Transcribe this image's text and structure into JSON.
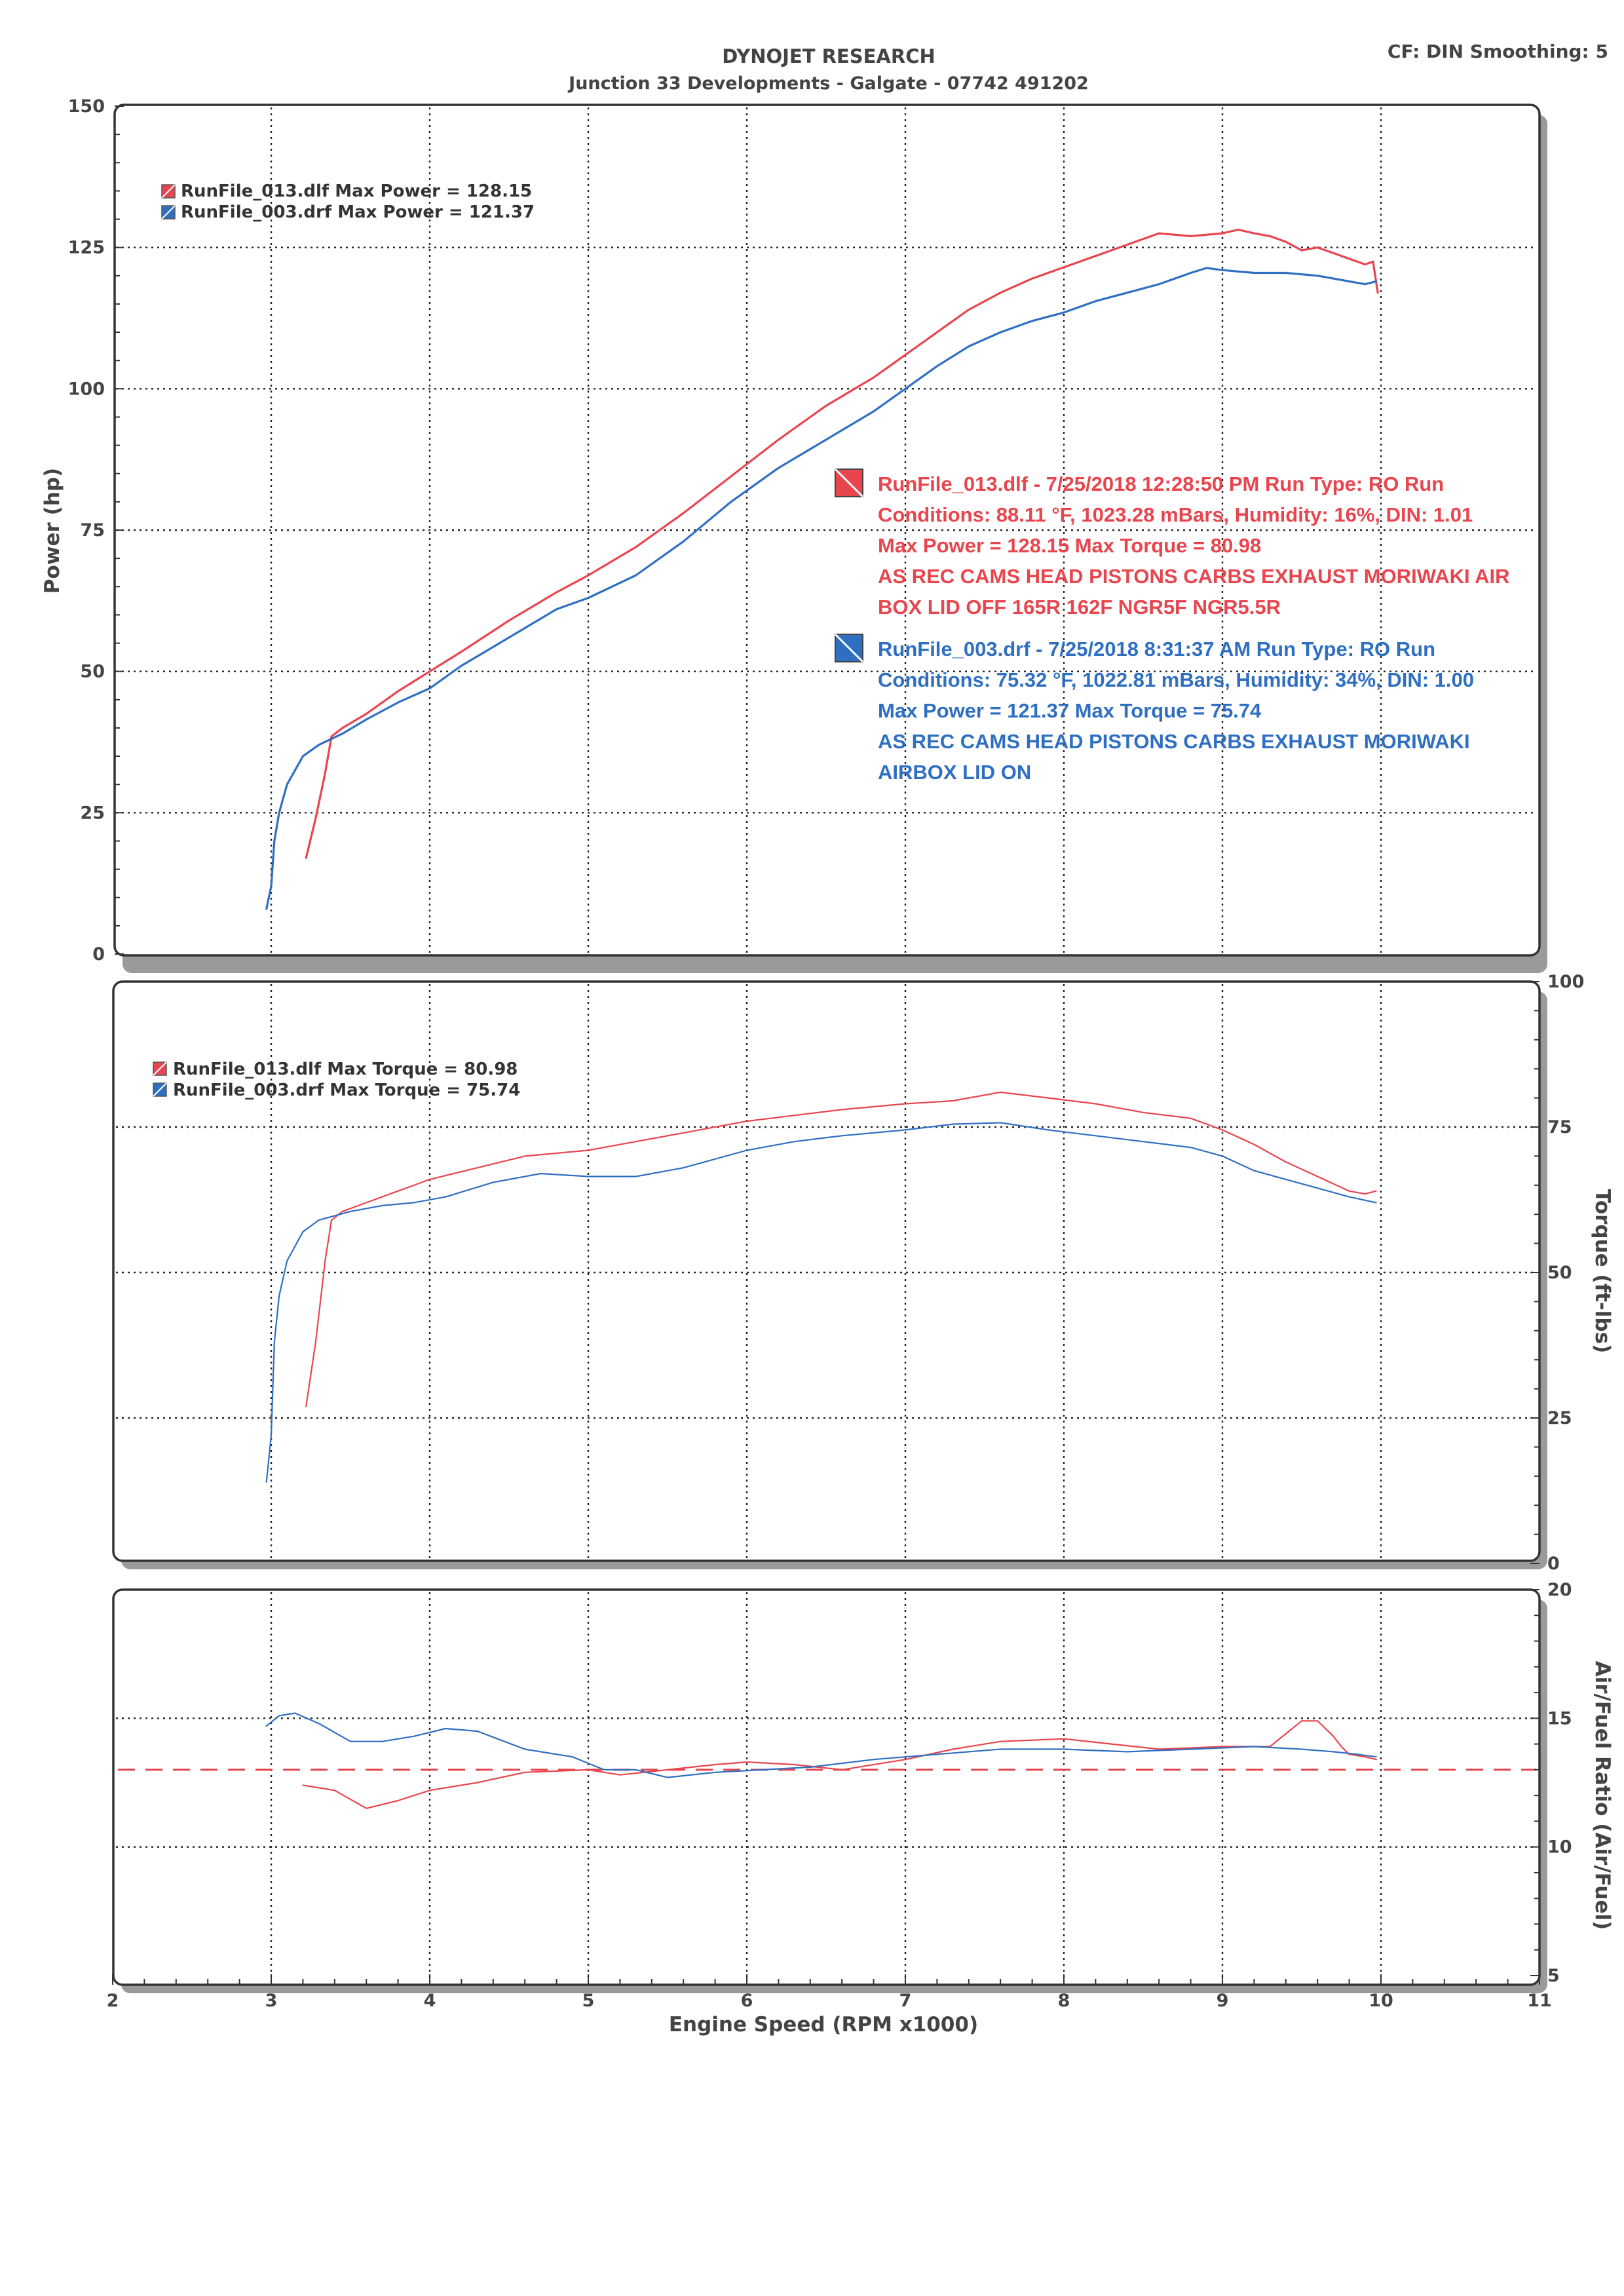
{
  "header": {
    "title": "DYNOJET RESEARCH",
    "subtitle": "Junction 33 Developments - Galgate - 07742 491202",
    "settings": "CF: DIN  Smoothing: 5"
  },
  "colors": {
    "run1": "#e8454e",
    "run2": "#2f6fc2",
    "target": "#e8454e",
    "text": "#444444"
  },
  "runs": [
    {
      "id": "run1",
      "color": "#e8454e",
      "power_legend": "RunFile_013.dlf Max Power = 128.15",
      "torque_legend": "RunFile_013.dlf Max Torque = 80.98",
      "note_lines": [
        "RunFile_013.dlf - 7/25/2018 12:28:50 PM  Run Type: RO  Run",
        "Conditions: 88.11 °F, 1023.28 mBars,  Humidity:  16%, DIN: 1.01",
        "Max Power = 128.15  Max Torque = 80.98",
        "AS REC CAMS HEAD PISTONS CARBS EXHAUST MORIWAKI AIR",
        "BOX LID OFF 165R 162F NGR5F NGR5.5R"
      ]
    },
    {
      "id": "run2",
      "color": "#2f6fc2",
      "power_legend": "RunFile_003.drf Max Power = 121.37",
      "torque_legend": "RunFile_003.drf Max Torque = 75.74",
      "note_lines": [
        "RunFile_003.drf - 7/25/2018 8:31:37 AM  Run Type: RO  Run",
        "Conditions: 75.32 °F, 1022.81 mBars,  Humidity:  34%, DIN: 1.00",
        "Max Power = 121.37  Max Torque = 75.74",
        "AS REC CAMS HEAD PISTONS CARBS EXHAUST MORIWAKI",
        "AIRBOX LID ON"
      ]
    }
  ],
  "chart_data": [
    {
      "type": "line",
      "id": "power",
      "ylabel": "Power (hp)",
      "ylim": [
        0,
        150
      ],
      "yticks": [
        0,
        25,
        50,
        75,
        100,
        125,
        150
      ],
      "xlim": [
        2,
        11
      ],
      "grid": true,
      "legend_position": "top-left",
      "series": [
        {
          "name": "RunFile_013.dlf",
          "x": [
            3.22,
            3.28,
            3.34,
            3.38,
            3.45,
            3.6,
            3.8,
            4.0,
            4.2,
            4.5,
            4.8,
            5.0,
            5.3,
            5.6,
            5.9,
            6.2,
            6.5,
            6.8,
            7.0,
            7.2,
            7.4,
            7.6,
            7.8,
            8.0,
            8.2,
            8.4,
            8.6,
            8.8,
            9.0,
            9.1,
            9.2,
            9.3,
            9.4,
            9.5,
            9.6,
            9.7,
            9.8,
            9.9,
            9.95,
            9.98
          ],
          "y": [
            17,
            24,
            32,
            38.5,
            40,
            42.5,
            46.5,
            50,
            53.5,
            59,
            64,
            67,
            72,
            78,
            84.5,
            91,
            97,
            102,
            106,
            110,
            114,
            117,
            119.5,
            121.5,
            123.5,
            125.5,
            127.5,
            127,
            127.5,
            128.15,
            127.5,
            127,
            126,
            124.5,
            125,
            124,
            123,
            122,
            122.5,
            117
          ]
        },
        {
          "name": "RunFile_003.drf",
          "x": [
            2.97,
            3.0,
            3.02,
            3.05,
            3.1,
            3.2,
            3.3,
            3.45,
            3.6,
            3.8,
            4.0,
            4.2,
            4.5,
            4.8,
            5.0,
            5.3,
            5.6,
            5.9,
            6.2,
            6.5,
            6.8,
            7.0,
            7.2,
            7.4,
            7.6,
            7.8,
            8.0,
            8.2,
            8.4,
            8.6,
            8.8,
            8.9,
            9.0,
            9.2,
            9.4,
            9.6,
            9.7,
            9.8,
            9.9,
            9.97
          ],
          "y": [
            8,
            12,
            20,
            25,
            30,
            35,
            37,
            39,
            41.5,
            44.5,
            47,
            51,
            56,
            61,
            63,
            67,
            73,
            80,
            86,
            91,
            96,
            100,
            104,
            107.5,
            110,
            112,
            113.5,
            115.5,
            117,
            118.5,
            120.5,
            121.37,
            121,
            120.5,
            120.5,
            120,
            119.5,
            119,
            118.5,
            119
          ]
        }
      ]
    },
    {
      "type": "line",
      "id": "torque",
      "ylabel": "Torque (ft-lbs)",
      "ylim": [
        0,
        100
      ],
      "yticks": [
        0,
        25,
        50,
        75,
        100
      ],
      "xlim": [
        2,
        11
      ],
      "grid": true,
      "legend_position": "top-left",
      "series": [
        {
          "name": "RunFile_013.dlf",
          "x": [
            3.22,
            3.28,
            3.34,
            3.38,
            3.45,
            3.6,
            3.8,
            4.0,
            4.3,
            4.6,
            5.0,
            5.3,
            5.6,
            6.0,
            6.3,
            6.6,
            7.0,
            7.3,
            7.6,
            7.9,
            8.2,
            8.5,
            8.8,
            9.0,
            9.2,
            9.4,
            9.6,
            9.8,
            9.9,
            9.97
          ],
          "y": [
            27,
            38,
            52,
            59,
            60.5,
            62,
            64,
            66,
            68,
            70,
            71,
            72.5,
            74,
            76,
            77,
            78,
            79,
            79.5,
            80.98,
            80,
            79,
            77.5,
            76.5,
            74.5,
            72,
            69,
            66.5,
            64,
            63.5,
            64
          ]
        },
        {
          "name": "RunFile_003.drf",
          "x": [
            2.97,
            3.0,
            3.02,
            3.05,
            3.1,
            3.2,
            3.3,
            3.5,
            3.7,
            3.9,
            4.1,
            4.4,
            4.7,
            5.0,
            5.3,
            5.6,
            6.0,
            6.3,
            6.6,
            7.0,
            7.3,
            7.6,
            7.9,
            8.2,
            8.5,
            8.8,
            9.0,
            9.2,
            9.4,
            9.6,
            9.8,
            9.97
          ],
          "y": [
            14,
            22,
            38,
            46,
            52,
            57,
            59,
            60.5,
            61.5,
            62,
            63,
            65.5,
            67,
            66.5,
            66.5,
            68,
            71,
            72.5,
            73.5,
            74.5,
            75.5,
            75.74,
            74.5,
            73.5,
            72.5,
            71.5,
            70,
            67.5,
            66,
            64.5,
            63,
            62
          ]
        }
      ]
    },
    {
      "type": "line",
      "id": "afr",
      "ylabel": "Air/Fuel Ratio (Air/Fuel)",
      "ylim": [
        5,
        20
      ],
      "yticks": [
        5,
        10,
        15,
        20
      ],
      "xlim": [
        2,
        11
      ],
      "xticks": [
        2,
        3,
        4,
        5,
        6,
        7,
        8,
        9,
        10,
        11
      ],
      "xlabel": "Engine Speed (RPM x1000)",
      "grid": true,
      "target_afr": 13,
      "series": [
        {
          "name": "RunFile_013.dlf",
          "x": [
            3.2,
            3.4,
            3.6,
            3.8,
            4.0,
            4.3,
            4.6,
            5.0,
            5.2,
            5.5,
            5.8,
            6.0,
            6.3,
            6.6,
            7.0,
            7.3,
            7.6,
            8.0,
            8.3,
            8.6,
            9.0,
            9.3,
            9.5,
            9.6,
            9.65,
            9.7,
            9.75,
            9.8,
            9.9,
            9.97
          ],
          "y": [
            12.4,
            12.2,
            11.5,
            11.8,
            12.2,
            12.5,
            12.9,
            13,
            12.8,
            13,
            13.2,
            13.3,
            13.2,
            13.0,
            13.4,
            13.8,
            14.1,
            14.2,
            14.0,
            13.8,
            13.9,
            13.9,
            14.9,
            14.9,
            14.6,
            14.3,
            13.9,
            13.6,
            13.5,
            13.4
          ]
        },
        {
          "name": "RunFile_003.drf",
          "x": [
            2.97,
            3.05,
            3.15,
            3.3,
            3.5,
            3.7,
            3.9,
            4.1,
            4.3,
            4.6,
            4.9,
            5.1,
            5.3,
            5.5,
            5.8,
            6.1,
            6.4,
            6.8,
            7.2,
            7.6,
            8.0,
            8.4,
            8.8,
            9.2,
            9.5,
            9.7,
            9.85,
            9.97
          ],
          "y": [
            14.7,
            15.1,
            15.2,
            14.8,
            14.1,
            14.1,
            14.3,
            14.6,
            14.5,
            13.8,
            13.5,
            13.0,
            13.0,
            12.7,
            12.9,
            13.0,
            13.1,
            13.4,
            13.6,
            13.8,
            13.8,
            13.7,
            13.8,
            13.9,
            13.8,
            13.7,
            13.6,
            13.5
          ]
        }
      ]
    }
  ]
}
